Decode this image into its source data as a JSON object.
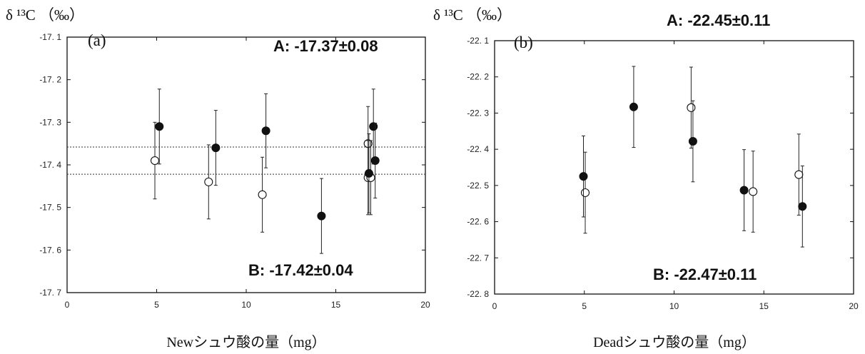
{
  "chart_data": [
    {
      "type": "scatter",
      "panel_label": "(a)",
      "ylabel": "δ ¹³C （‰）",
      "xlabel": "Newシュウ酸の量（mg）",
      "xlim": [
        0,
        20
      ],
      "ylim": [
        -17.7,
        -17.1
      ],
      "x_ticks": [
        0,
        5,
        10,
        15,
        20
      ],
      "y_ticks": [
        -17.1,
        -17.2,
        -17.3,
        -17.4,
        -17.5,
        -17.6,
        -17.7
      ],
      "y_tick_labels": [
        "-17. 1",
        "-17. 2",
        "-17. 3",
        "-17. 4",
        "-17. 5",
        "-17. 6",
        "-17. 7"
      ],
      "annotation_A": "A: -17.37±0.08",
      "annotation_B": "B: -17.42±0.04",
      "reference_lines": [
        -17.358,
        -17.422
      ],
      "series": [
        {
          "marker": "open",
          "points": [
            {
              "x": 4.9,
              "y": -17.39,
              "err": 0.09
            },
            {
              "x": 7.9,
              "y": -17.44,
              "err": 0.087
            },
            {
              "x": 10.9,
              "y": -17.47,
              "err": 0.088
            },
            {
              "x": 16.8,
              "y": -17.35,
              "err": 0.087
            },
            {
              "x": 16.8,
              "y": -17.43,
              "err": 0.087
            },
            {
              "x": 16.95,
              "y": -17.43,
              "err": 0.087
            }
          ]
        },
        {
          "marker": "filled",
          "points": [
            {
              "x": 5.15,
              "y": -17.31,
              "err": 0.088
            },
            {
              "x": 8.3,
              "y": -17.36,
              "err": 0.088
            },
            {
              "x": 11.1,
              "y": -17.32,
              "err": 0.087
            },
            {
              "x": 14.2,
              "y": -17.52,
              "err": 0.088
            },
            {
              "x": 16.85,
              "y": -17.42,
              "err": 0.093
            },
            {
              "x": 17.1,
              "y": -17.31,
              "err": 0.088
            },
            {
              "x": 17.2,
              "y": -17.39,
              "err": 0.088
            }
          ]
        }
      ]
    },
    {
      "type": "scatter",
      "panel_label": "(b)",
      "ylabel": "δ ¹³C （‰）",
      "xlabel": "Deadシュウ酸の量（mg）",
      "xlim": [
        0,
        20
      ],
      "ylim": [
        -22.8,
        -22.1
      ],
      "x_ticks": [
        0,
        5,
        10,
        15,
        20
      ],
      "y_ticks": [
        -22.1,
        -22.2,
        -22.3,
        -22.4,
        -22.5,
        -22.6,
        -22.7,
        -22.8
      ],
      "y_tick_labels": [
        "-22. 1",
        "-22. 2",
        "-22. 3",
        "-22. 4",
        "-22. 5",
        "-22. 6",
        "-22. 7",
        "-22. 8"
      ],
      "annotation_A": "A: -22.45±0.11",
      "annotation_B": "B: -22.47±0.11",
      "reference_lines": [],
      "series": [
        {
          "marker": "open",
          "points": [
            {
              "x": 5.05,
              "y": -22.52,
              "err": 0.112
            },
            {
              "x": 10.95,
              "y": -22.285,
              "err": 0.112
            },
            {
              "x": 14.4,
              "y": -22.517,
              "err": 0.112
            },
            {
              "x": 16.95,
              "y": -22.47,
              "err": 0.112
            }
          ]
        },
        {
          "marker": "filled",
          "points": [
            {
              "x": 4.95,
              "y": -22.475,
              "err": 0.112
            },
            {
              "x": 7.75,
              "y": -22.283,
              "err": 0.112
            },
            {
              "x": 11.05,
              "y": -22.378,
              "err": 0.112
            },
            {
              "x": 13.9,
              "y": -22.513,
              "err": 0.112
            },
            {
              "x": 17.15,
              "y": -22.558,
              "err": 0.112
            }
          ]
        }
      ]
    }
  ]
}
